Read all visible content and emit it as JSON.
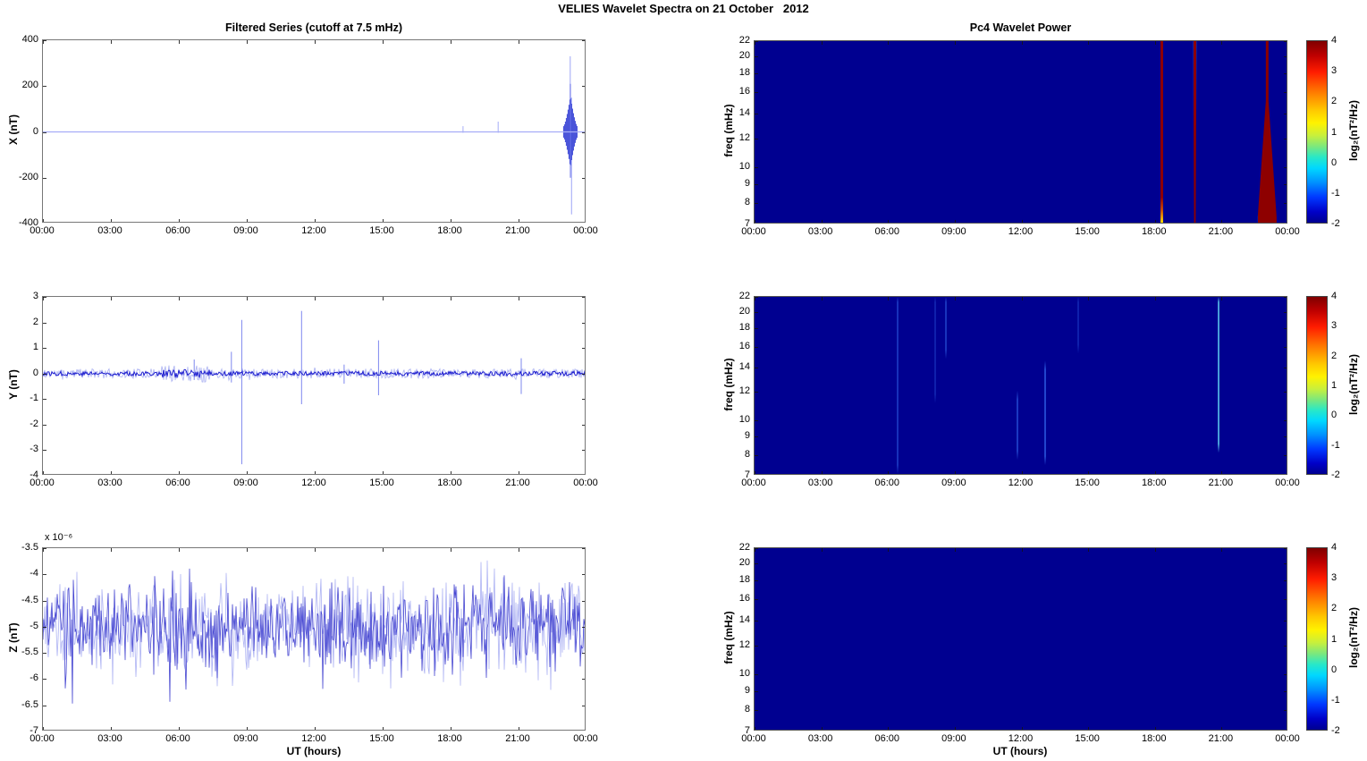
{
  "page": {
    "title": "VELIES Wavelet Spectra on 21 October   2012"
  },
  "colors": {
    "background": "#ffffff",
    "axis": "#777777",
    "spectrogram_background": "#000090",
    "hot_red": "#8e0000",
    "cyan_edge": "#55ccff",
    "series_light_blue": "#a6adf7",
    "series_blue": "#1414cc",
    "series_mid_blue": "#4646d8",
    "jet_stops": [
      "#7f0000 0%",
      "#bf0000 8%",
      "#ff1c00 17%",
      "#ff7a00 28%",
      "#ffc800 38%",
      "#fff200 45%",
      "#c8f03c 52%",
      "#7ce87c 58%",
      "#28e8c8 64%",
      "#00d8ff 70%",
      "#0090ff 78%",
      "#0038ff 86%",
      "#0000c8 94%",
      "#000090 100%"
    ]
  },
  "chart_data": [
    {
      "id": "x-series",
      "type": "line",
      "title": "Filtered Series (cutoff at 7.5 mHz)",
      "ylabel": "X (nT)",
      "xlabel": "",
      "x_ticks": [
        "00:00",
        "03:00",
        "06:00",
        "09:00",
        "12:00",
        "15:00",
        "18:00",
        "21:00",
        "00:00"
      ],
      "x_range_hours": [
        0,
        24
      ],
      "ylim": [
        -400,
        400
      ],
      "y_ticks": [
        "400",
        "200",
        "0",
        "-200",
        "-400"
      ],
      "baseline_nT": 0,
      "spikes": [
        {
          "hour": 18.55,
          "max": 25,
          "min": -4
        },
        {
          "hour": 20.1,
          "max": 45,
          "min": -4
        }
      ],
      "tall_lines": [
        {
          "hour": 23.28,
          "max": 330,
          "min": -120
        },
        {
          "hour": 23.34,
          "max": 150,
          "min": -360
        }
      ],
      "burst": {
        "center_hour": 23.29,
        "half_width_hours": 0.3,
        "peak_amp_nT": 130,
        "base_amp_nT": 25
      },
      "grid": false
    },
    {
      "id": "y-series",
      "type": "line",
      "ylabel": "Y (nT)",
      "xlabel": "",
      "x_ticks": [
        "00:00",
        "03:00",
        "06:00",
        "09:00",
        "12:00",
        "15:00",
        "18:00",
        "21:00",
        "00:00"
      ],
      "x_range_hours": [
        0,
        24
      ],
      "ylim": [
        -4,
        3
      ],
      "y_ticks": [
        "3",
        "2",
        "1",
        "0",
        "-1",
        "-2",
        "-3",
        "-4"
      ],
      "baseline_nT": 0,
      "noise_amplitude_nT": 0.09,
      "noisy_zones": [
        {
          "from": 5.2,
          "to": 7.4,
          "factor": 1.8
        }
      ],
      "spikes": [
        {
          "hour": 6.68,
          "max": 0.55,
          "min": -0.25
        },
        {
          "hour": 8.32,
          "max": 0.85,
          "min": -0.35
        },
        {
          "hour": 8.78,
          "max": 2.1,
          "min": -3.55
        },
        {
          "hour": 11.42,
          "max": 2.45,
          "min": -1.2
        },
        {
          "hour": 13.3,
          "max": 0.35,
          "min": -0.4
        },
        {
          "hour": 14.82,
          "max": 1.3,
          "min": -0.85
        },
        {
          "hour": 21.12,
          "max": 0.6,
          "min": -0.8
        }
      ],
      "grid": false
    },
    {
      "id": "z-series",
      "type": "line",
      "ylabel": "Z (nT)",
      "xlabel": "UT (hours)",
      "scale_label": "x 10⁻⁶",
      "x_ticks": [
        "00:00",
        "03:00",
        "06:00",
        "09:00",
        "12:00",
        "15:00",
        "18:00",
        "21:00",
        "00:00"
      ],
      "x_range_hours": [
        0,
        24
      ],
      "ylim": [
        -7,
        -3.5
      ],
      "y_ticks": [
        "-3.5",
        "-4",
        "-4.5",
        "-5",
        "-5.5",
        "-6",
        "-6.5",
        "-7"
      ],
      "mean": -5,
      "noise_std": 0.5,
      "value_range": [
        -6.5,
        -3.6
      ],
      "grid": false
    },
    {
      "id": "x-wavelet",
      "type": "heatmap",
      "title": "Pc4 Wavelet Power",
      "ylabel": "freq (mHz)",
      "xlabel": "",
      "x_ticks": [
        "00:00",
        "03:00",
        "06:00",
        "09:00",
        "12:00",
        "15:00",
        "18:00",
        "21:00",
        "00:00"
      ],
      "x_range_hours": [
        0,
        24
      ],
      "y_ticks": [
        22,
        20,
        18,
        16,
        14,
        12,
        10,
        9,
        8,
        7
      ],
      "y_scale": "log",
      "freq_range_mHz": [
        7,
        22
      ],
      "background_value": -2,
      "colorbar": {
        "label": "log₂(nT²/Hz)",
        "ticks": [
          "4",
          "3",
          "2",
          "1",
          "0",
          "-1",
          "-2"
        ],
        "clim": [
          -2,
          4
        ]
      },
      "features": [
        {
          "kind": "stripe",
          "hour": 18.3,
          "width_hours": 0.12,
          "value": 4,
          "base": "warm"
        },
        {
          "kind": "stripe",
          "hour": 19.8,
          "width_hours": 0.16,
          "value": 4,
          "taper": true
        },
        {
          "kind": "wedge",
          "hour": 23.05,
          "top_width_hours": 0.12,
          "bottom_width_hours": 0.85,
          "value": 4,
          "widens_below_pct": 33
        }
      ]
    },
    {
      "id": "y-wavelet",
      "type": "heatmap",
      "ylabel": "freq (mHz)",
      "xlabel": "",
      "x_ticks": [
        "00:00",
        "03:00",
        "06:00",
        "09:00",
        "12:00",
        "15:00",
        "18:00",
        "21:00",
        "00:00"
      ],
      "x_range_hours": [
        0,
        24
      ],
      "y_ticks": [
        22,
        20,
        18,
        16,
        14,
        12,
        10,
        9,
        8,
        7
      ],
      "y_scale": "log",
      "freq_range_mHz": [
        7,
        22
      ],
      "background_value": -2,
      "colorbar": {
        "label": "log₂(nT²/Hz)",
        "ticks": [
          "4",
          "3",
          "2",
          "1",
          "0",
          "-1",
          "-2"
        ],
        "clim": [
          -2,
          4
        ]
      },
      "features": [
        {
          "kind": "streak",
          "hour": 6.45,
          "span_pct": [
            0,
            100
          ],
          "intensity": 0.38
        },
        {
          "kind": "streak",
          "hour": 8.1,
          "span_pct": [
            0,
            60
          ],
          "intensity": 0.25
        },
        {
          "kind": "streak",
          "hour": 8.6,
          "span_pct": [
            0,
            35
          ],
          "intensity": 0.4
        },
        {
          "kind": "streak",
          "hour": 11.8,
          "span_pct": [
            55,
            92
          ],
          "intensity": 0.45
        },
        {
          "kind": "streak",
          "hour": 13.05,
          "span_pct": [
            38,
            95
          ],
          "intensity": 0.55
        },
        {
          "kind": "streak",
          "hour": 14.55,
          "span_pct": [
            0,
            32
          ],
          "intensity": 0.25
        },
        {
          "kind": "streak",
          "hour": 20.85,
          "span_pct": [
            0,
            88
          ],
          "intensity": 0.8
        }
      ]
    },
    {
      "id": "z-wavelet",
      "type": "heatmap",
      "ylabel": "freq (mHz)",
      "xlabel": "UT (hours)",
      "x_ticks": [
        "00:00",
        "03:00",
        "06:00",
        "09:00",
        "12:00",
        "15:00",
        "18:00",
        "21:00",
        "00:00"
      ],
      "x_range_hours": [
        0,
        24
      ],
      "y_ticks": [
        22,
        20,
        18,
        16,
        14,
        12,
        10,
        9,
        8,
        7
      ],
      "y_scale": "log",
      "freq_range_mHz": [
        7,
        22
      ],
      "background_value": -2,
      "colorbar": {
        "label": "log₂(nT²/Hz)",
        "ticks": [
          "4",
          "3",
          "2",
          "1",
          "0",
          "-1",
          "-2"
        ],
        "clim": [
          -2,
          4
        ]
      },
      "features": []
    }
  ]
}
